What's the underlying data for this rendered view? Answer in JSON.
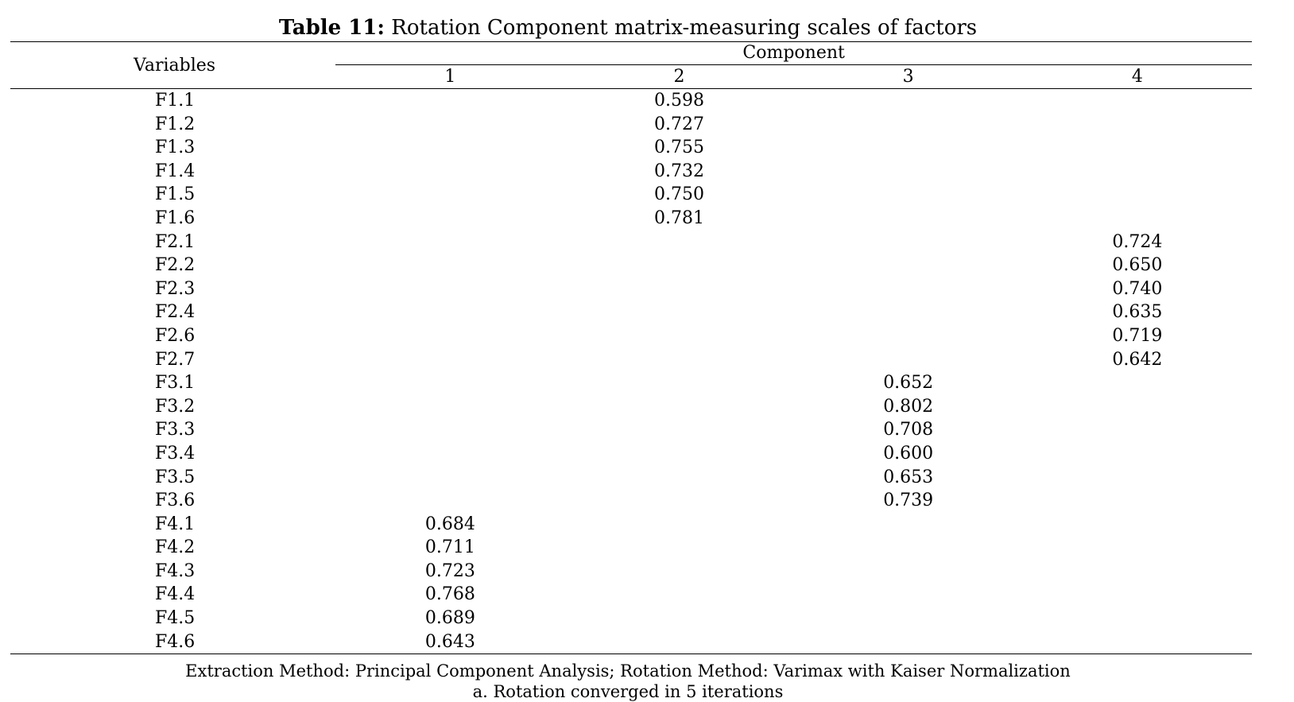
{
  "title": {
    "label": "Table 11:",
    "text": "Rotation Component matrix-measuring scales of factors"
  },
  "header": {
    "variables": "Variables",
    "component": "Component",
    "components": [
      "1",
      "2",
      "3",
      "4"
    ]
  },
  "rows": [
    {
      "variable": "F1.1",
      "values": [
        "",
        "0.598",
        "",
        ""
      ]
    },
    {
      "variable": "F1.2",
      "values": [
        "",
        "0.727",
        "",
        ""
      ]
    },
    {
      "variable": "F1.3",
      "values": [
        "",
        "0.755",
        "",
        ""
      ]
    },
    {
      "variable": "F1.4",
      "values": [
        "",
        "0.732",
        "",
        ""
      ]
    },
    {
      "variable": "F1.5",
      "values": [
        "",
        "0.750",
        "",
        ""
      ]
    },
    {
      "variable": "F1.6",
      "values": [
        "",
        "0.781",
        "",
        ""
      ]
    },
    {
      "variable": "F2.1",
      "values": [
        "",
        "",
        "",
        "0.724"
      ]
    },
    {
      "variable": "F2.2",
      "values": [
        "",
        "",
        "",
        "0.650"
      ]
    },
    {
      "variable": "F2.3",
      "values": [
        "",
        "",
        "",
        "0.740"
      ]
    },
    {
      "variable": "F2.4",
      "values": [
        "",
        "",
        "",
        "0.635"
      ]
    },
    {
      "variable": "F2.6",
      "values": [
        "",
        "",
        "",
        "0.719"
      ]
    },
    {
      "variable": "F2.7",
      "values": [
        "",
        "",
        "",
        "0.642"
      ]
    },
    {
      "variable": "F3.1",
      "values": [
        "",
        "",
        "0.652",
        ""
      ]
    },
    {
      "variable": "F3.2",
      "values": [
        "",
        "",
        "0.802",
        ""
      ]
    },
    {
      "variable": "F3.3",
      "values": [
        "",
        "",
        "0.708",
        ""
      ]
    },
    {
      "variable": "F3.4",
      "values": [
        "",
        "",
        "0.600",
        ""
      ]
    },
    {
      "variable": "F3.5",
      "values": [
        "",
        "",
        "0.653",
        ""
      ]
    },
    {
      "variable": "F3.6",
      "values": [
        "",
        "",
        "0.739",
        ""
      ]
    },
    {
      "variable": "F4.1",
      "values": [
        "0.684",
        "",
        "",
        ""
      ]
    },
    {
      "variable": "F4.2",
      "values": [
        "0.711",
        "",
        "",
        ""
      ]
    },
    {
      "variable": "F4.3",
      "values": [
        "0.723",
        "",
        "",
        ""
      ]
    },
    {
      "variable": "F4.4",
      "values": [
        "0.768",
        "",
        "",
        ""
      ]
    },
    {
      "variable": "F4.5",
      "values": [
        "0.689",
        "",
        "",
        ""
      ]
    },
    {
      "variable": "F4.6",
      "values": [
        "0.643",
        "",
        "",
        ""
      ]
    }
  ],
  "footnotes": {
    "method": "Extraction Method: Principal Component Analysis; Rotation Method: Varimax with Kaiser Normalization",
    "convergence": "a. Rotation converged in 5 iterations"
  }
}
